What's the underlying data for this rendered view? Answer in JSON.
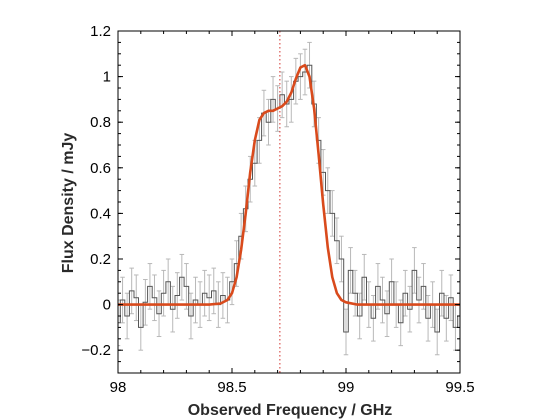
{
  "chart_data": {
    "type": "line",
    "title": "",
    "xlabel": "Observed Frequency / GHz",
    "ylabel": "Flux Density / mJy",
    "xlim": [
      98,
      99.5
    ],
    "ylim": [
      -0.3,
      1.2
    ],
    "xticks": [
      98,
      98.5,
      99,
      99.5
    ],
    "xtick_labels": [
      "98",
      "98.5",
      "99",
      "99.5"
    ],
    "yticks": [
      -0.2,
      0,
      0.2,
      0.4,
      0.6,
      0.8,
      1,
      1.2
    ],
    "ytick_labels": [
      "−0.2",
      "0",
      "0.2",
      "0.4",
      "0.6",
      "0.8",
      "1",
      "1.2"
    ],
    "grid": false,
    "reference_line": {
      "x": 98.71,
      "style": "dotted",
      "color": "#d2322d"
    },
    "series": [
      {
        "type": "step",
        "color": "#555555",
        "error_color": "#b8b8b8",
        "x": [
          98.0,
          98.02,
          98.04,
          98.06,
          98.08,
          98.1,
          98.12,
          98.14,
          98.16,
          98.18,
          98.2,
          98.22,
          98.24,
          98.26,
          98.28,
          98.3,
          98.32,
          98.34,
          98.36,
          98.38,
          98.4,
          98.42,
          98.44,
          98.46,
          98.48,
          98.5,
          98.52,
          98.54,
          98.56,
          98.58,
          98.6,
          98.62,
          98.64,
          98.66,
          98.68,
          98.7,
          98.72,
          98.74,
          98.76,
          98.78,
          98.8,
          98.82,
          98.84,
          98.86,
          98.88,
          98.9,
          98.92,
          98.94,
          98.96,
          98.98,
          99.0,
          99.02,
          99.04,
          99.06,
          99.08,
          99.1,
          99.12,
          99.14,
          99.16,
          99.18,
          99.2,
          99.22,
          99.24,
          99.26,
          99.28,
          99.3,
          99.32,
          99.34,
          99.36,
          99.38,
          99.4,
          99.42,
          99.44,
          99.46,
          99.48,
          99.5
        ],
        "y": [
          -0.08,
          0.02,
          -0.05,
          0.06,
          0.03,
          -0.1,
          0.01,
          0.08,
          0.03,
          -0.04,
          0.05,
          0.1,
          -0.02,
          0.04,
          0.12,
          0.08,
          -0.05,
          0.02,
          0.0,
          0.05,
          0.03,
          0.06,
          0.0,
          0.04,
          0.02,
          0.1,
          0.18,
          0.3,
          0.42,
          0.55,
          0.62,
          0.72,
          0.84,
          0.8,
          0.9,
          0.86,
          0.92,
          0.88,
          0.9,
          0.98,
          1.0,
          1.02,
          1.05,
          0.88,
          0.72,
          0.58,
          0.5,
          0.4,
          0.28,
          0.2,
          -0.12,
          0.15,
          0.05,
          -0.05,
          0.12,
          0.0,
          -0.06,
          0.08,
          0.02,
          -0.04,
          0.1,
          0.0,
          -0.08,
          0.05,
          -0.02,
          0.15,
          0.02,
          0.08,
          -0.06,
          0.0,
          -0.12,
          0.05,
          -0.06,
          0.03,
          -0.1,
          -0.05
        ],
        "error": 0.1
      },
      {
        "type": "line",
        "color": "#d94a1c",
        "x": [
          98.0,
          98.3,
          98.4,
          98.45,
          98.48,
          98.5,
          98.52,
          98.54,
          98.56,
          98.58,
          98.6,
          98.62,
          98.64,
          98.66,
          98.68,
          98.7,
          98.72,
          98.74,
          98.76,
          98.78,
          98.8,
          98.82,
          98.84,
          98.86,
          98.88,
          98.9,
          98.92,
          98.94,
          98.96,
          98.98,
          99.0,
          99.05,
          99.1,
          99.5
        ],
        "y": [
          0.0,
          0.0,
          0.0,
          0.005,
          0.02,
          0.05,
          0.12,
          0.24,
          0.4,
          0.58,
          0.72,
          0.81,
          0.84,
          0.85,
          0.85,
          0.86,
          0.87,
          0.89,
          0.93,
          0.99,
          1.04,
          1.05,
          1.0,
          0.86,
          0.66,
          0.44,
          0.25,
          0.12,
          0.05,
          0.02,
          0.01,
          0.0,
          0.0,
          0.0
        ]
      }
    ]
  }
}
